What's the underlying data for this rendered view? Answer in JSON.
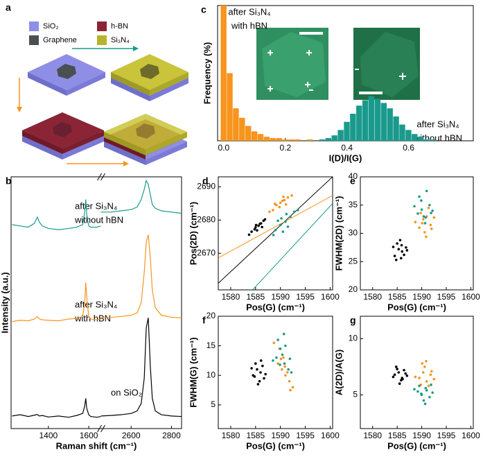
{
  "panel_a": {
    "label": "a",
    "legend": [
      {
        "label": "SiO₂",
        "color": "#8f8ee6"
      },
      {
        "label": "h-BN",
        "color": "#8b2535"
      },
      {
        "label": "Graphene",
        "color": "#4a4f52"
      },
      {
        "label": "Si₃N₄",
        "color": "#b8b32c"
      }
    ]
  },
  "chart_data": [
    {
      "type": "line",
      "label": "b",
      "xlabel": "Raman shift (cm⁻¹)",
      "ylabel": "Intensity (a.u.)",
      "xlim": [
        [
          1215,
          1660
        ],
        [
          2450,
          2850
        ]
      ],
      "ylim": [
        0,
        100
      ],
      "xticks": [
        1400,
        1600,
        2600,
        2800
      ],
      "x": [
        1220,
        1260,
        1300,
        1330,
        1345,
        1355,
        1370,
        1400,
        1450,
        1500,
        1540,
        1570,
        1580,
        1585,
        1590,
        1600,
        1610,
        1640,
        1660,
        2450,
        2500,
        2550,
        2600,
        2630,
        2650,
        2665,
        2675,
        2685,
        2695,
        2705,
        2720,
        2750,
        2800,
        2850
      ],
      "series": [
        {
          "color": "#000000",
          "values": [
            5,
            5.5,
            4.8,
            5.3,
            5.6,
            5,
            5.2,
            4.6,
            5,
            4.5,
            5.2,
            6,
            9,
            12,
            8,
            5.5,
            4.8,
            4.5,
            4.8,
            5,
            5.2,
            5.5,
            6,
            7,
            10,
            20,
            40,
            44,
            25,
            12,
            7,
            5.5,
            5,
            4.8
          ]
        },
        {
          "color": "#f7941d",
          "values": [
            42.5,
            43,
            42.8,
            43.5,
            44.5,
            43.6,
            43.2,
            43,
            42.8,
            43.5,
            43.8,
            44.5,
            50,
            58,
            52,
            44.5,
            43.5,
            43.2,
            43.6,
            44,
            44.2,
            44.5,
            45,
            46,
            50,
            62,
            74,
            77,
            68,
            55,
            48,
            45,
            44.2,
            44
          ]
        },
        {
          "color": "#1a9a8c",
          "values": [
            81,
            80.5,
            80,
            81.5,
            84,
            82,
            80.5,
            79.5,
            79,
            79.5,
            80,
            81,
            86,
            91,
            85,
            80.5,
            80,
            80,
            80.5,
            86,
            86,
            86.5,
            87,
            88,
            91,
            95,
            98.5,
            97,
            93,
            89,
            87.5,
            86.5,
            86,
            85.5
          ]
        }
      ],
      "annotations": [
        {
          "lines": [
            "after Si₃N₄",
            "without hBN"
          ],
          "color": "#1a9a8c"
        },
        {
          "lines": [
            "after Si₃N₄",
            "with hBN"
          ],
          "color": "#f7941d"
        },
        {
          "lines": [
            "on SiO₂"
          ],
          "color": "#000000"
        }
      ]
    },
    {
      "type": "histogram",
      "label": "c",
      "xlabel": "I(D)/I(G)",
      "ylabel": "Frequency (%)",
      "xlim": [
        -0.02,
        0.81
      ],
      "ylim": [
        0,
        100
      ],
      "xticks": [
        {
          "value": 0,
          "label": "0.0"
        },
        0.2,
        0.4,
        0.6
      ],
      "bins": [
        -0.01,
        0.01,
        0.03,
        0.05,
        0.07,
        0.09,
        0.11,
        0.13,
        0.15,
        0.17,
        0.19,
        0.21,
        0.23,
        0.25,
        0.27,
        0.29,
        0.31,
        0.33,
        0.35,
        0.37,
        0.39,
        0.41,
        0.43,
        0.45,
        0.47,
        0.49,
        0.51,
        0.53,
        0.55,
        0.57,
        0.59,
        0.61,
        0.63,
        0.65,
        0.67,
        0.69
      ],
      "series": [
        {
          "color": "#1a9a8c",
          "values": [
            0,
            0,
            0,
            0,
            0,
            0,
            0,
            0,
            0,
            0,
            0,
            0,
            0,
            0,
            0,
            0,
            1,
            2,
            4,
            8,
            14,
            20,
            26,
            30,
            33,
            31,
            28,
            24,
            18,
            12,
            8,
            5,
            3,
            1,
            1
          ]
        },
        {
          "color": "#f7941d",
          "values": [
            100,
            50,
            24,
            17,
            11,
            7,
            5,
            3,
            2,
            2,
            1,
            1,
            1,
            0,
            1,
            0,
            0,
            0,
            0,
            0,
            0,
            0,
            0,
            0,
            0,
            0,
            0,
            0,
            0,
            0,
            0,
            0,
            0,
            0,
            0
          ]
        }
      ],
      "annotations": [
        {
          "lines": [
            "after Si₃N₄",
            "with hBN"
          ],
          "color": "#f7941d"
        },
        {
          "lines": [
            "after Si₃N₄",
            "without hBN"
          ],
          "color": "#1a9a8c"
        }
      ]
    },
    {
      "type": "scatter",
      "label": "d",
      "xlabel": "Pos(G) (cm⁻¹)",
      "ylabel": "Pos(2D) (cm⁻¹)",
      "xlim": [
        1577.5,
        1600.5
      ],
      "ylim": [
        2659,
        2693
      ],
      "xticks": [
        1580,
        1585,
        1590,
        1595,
        1600
      ],
      "yticks": [
        2670,
        2680,
        2690
      ],
      "fit_lines": [
        {
          "color": "#000000",
          "x": [
            1577.5,
            1600.5
          ],
          "values": [
            2661,
            2693
          ]
        },
        {
          "color": "#f7941d",
          "x": [
            1577.5,
            1600.5
          ],
          "values": [
            2668.6,
            2687.4
          ]
        },
        {
          "color": "#1a9a8c",
          "x": [
            1584.4,
            1600.5
          ],
          "values": [
            2659,
            2685
          ]
        }
      ],
      "series": [
        {
          "color": "#000000",
          "x": [
            1584.2,
            1585,
            1585.6,
            1586.1,
            1585.3,
            1586.6,
            1584.8,
            1583.7,
            1586.9,
            1585.9,
            1585.1,
            1586.3
          ],
          "values": [
            2676.5,
            2677.8,
            2678.3,
            2679,
            2676.9,
            2679.8,
            2677.2,
            2675.6,
            2680.2,
            2678.9,
            2678.5,
            2677.9
          ]
        },
        {
          "color": "#f7941d",
          "x": [
            1588.5,
            1589.2,
            1590,
            1590.8,
            1591.5,
            1589.8,
            1590.4,
            1591.1,
            1592.3,
            1588.9,
            1590.6,
            1587.8
          ],
          "values": [
            2683,
            2684.5,
            2685.2,
            2686,
            2686.8,
            2683.9,
            2685.8,
            2684.7,
            2687.4,
            2684.9,
            2687,
            2682.5
          ]
        },
        {
          "color": "#1a9a8c",
          "x": [
            1589,
            1590,
            1591,
            1592,
            1590.5,
            1591.5,
            1592.8,
            1589.5,
            1591.2,
            1593.5,
            1588.6,
            1590.2
          ],
          "values": [
            2677,
            2678.5,
            2679.5,
            2681,
            2676.5,
            2678,
            2682.5,
            2679.8,
            2681.8,
            2683,
            2675.5,
            2680.5
          ]
        }
      ]
    },
    {
      "type": "scatter",
      "label": "e",
      "xlabel": "Pos(G) (cm⁻¹)",
      "ylabel": "FWHM(2D) (cm⁻¹)",
      "xlim": [
        1577.5,
        1600.5
      ],
      "ylim": [
        20,
        40
      ],
      "xticks": [
        1580,
        1585,
        1590,
        1595,
        1600
      ],
      "yticks": [
        20,
        25,
        30,
        35,
        40
      ],
      "series": [
        {
          "color": "#000000",
          "x": [
            1584.5,
            1585.3,
            1586,
            1586.8,
            1585,
            1585.8,
            1584.2,
            1586.4,
            1585.6,
            1587,
            1584.8,
            1585.9
          ],
          "values": [
            26,
            27.2,
            26.8,
            27.5,
            28.2,
            25.6,
            27.6,
            26.2,
            28.8,
            27,
            25.3,
            27.9
          ]
        },
        {
          "color": "#f7941d",
          "x": [
            1589.5,
            1590.3,
            1591,
            1591.8,
            1590.6,
            1589.8,
            1592.5,
            1590.9,
            1588.7,
            1591.4,
            1590.1,
            1592
          ],
          "values": [
            31,
            32.5,
            33,
            31.5,
            30.2,
            33.6,
            32.8,
            29.4,
            32,
            34.5,
            31.8,
            30.8
          ]
        },
        {
          "color": "#1a9a8c",
          "x": [
            1589.2,
            1590,
            1590.8,
            1591.6,
            1589.5,
            1590.4,
            1592.2,
            1591,
            1588.5,
            1590.7,
            1591.9,
            1589.9
          ],
          "values": [
            33.5,
            34.2,
            32.8,
            35,
            36.5,
            33,
            34,
            37.5,
            34.8,
            31.8,
            33.6,
            35.8
          ]
        }
      ]
    },
    {
      "type": "scatter",
      "label": "f",
      "xlabel": "Pos(G) (cm⁻¹)",
      "ylabel": "FWHM(G) (cm⁻¹)",
      "xlim": [
        1577.5,
        1600.5
      ],
      "ylim": [
        1,
        20
      ],
      "xticks": [
        1580,
        1585,
        1590,
        1595,
        1600
      ],
      "yticks": [
        5,
        10,
        15,
        20
      ],
      "series": [
        {
          "color": "#000000",
          "x": [
            1584.5,
            1585.3,
            1586,
            1586.7,
            1585,
            1585.8,
            1584.2,
            1586.4,
            1585.5,
            1587,
            1584.8,
            1586.1
          ],
          "values": [
            10,
            11,
            10.5,
            9.5,
            12,
            9,
            11.2,
            11.6,
            8.5,
            10.2,
            9.8,
            12.5
          ]
        },
        {
          "color": "#f7941d",
          "x": [
            1589.5,
            1590.3,
            1591,
            1591.8,
            1590.6,
            1589.8,
            1592.5,
            1590.9,
            1588.7,
            1591.4,
            1590.1,
            1592
          ],
          "values": [
            12,
            11,
            10,
            9,
            13,
            14.5,
            8,
            11.5,
            15.5,
            10.5,
            12.8,
            7.5
          ]
        },
        {
          "color": "#1a9a8c",
          "x": [
            1589.2,
            1590,
            1590.8,
            1591.6,
            1589.5,
            1590.4,
            1592.2,
            1591,
            1588.5,
            1590.7,
            1591.9,
            1589.9
          ],
          "values": [
            13,
            14.5,
            12,
            11,
            16,
            13.5,
            10.5,
            15,
            12.5,
            17,
            12.8,
            11.8
          ]
        }
      ]
    },
    {
      "type": "scatter",
      "label": "g",
      "xlabel": "Pos(G) (cm⁻¹)",
      "ylabel": "A(2D)/A(G)",
      "xlim": [
        1577.5,
        1600.5
      ],
      "ylim": [
        2,
        12
      ],
      "xticks": [
        1580,
        1585,
        1590,
        1595,
        1600
      ],
      "yticks": [
        5,
        10
      ],
      "series": [
        {
          "color": "#000000",
          "x": [
            1584.5,
            1585.3,
            1586,
            1586.7,
            1585,
            1585.8,
            1584.2,
            1586.4,
            1585.5,
            1587,
            1584.8,
            1586.1
          ],
          "values": [
            6.8,
            7,
            6.5,
            6.9,
            7.3,
            6.3,
            6.6,
            7.2,
            6,
            6.7,
            7.5,
            6.4
          ]
        },
        {
          "color": "#f7941d",
          "x": [
            1589.5,
            1590.3,
            1591,
            1591.8,
            1590.6,
            1589.8,
            1592.5,
            1590.9,
            1588.7,
            1591.4,
            1590.1,
            1592
          ],
          "values": [
            6.5,
            7,
            6.2,
            6.8,
            7.5,
            5.9,
            6.4,
            8,
            6.6,
            5.8,
            7.8,
            7.1
          ]
        },
        {
          "color": "#1a9a8c",
          "x": [
            1589.2,
            1590,
            1590.8,
            1591.6,
            1589.5,
            1590.4,
            1592.2,
            1591,
            1588.5,
            1590.7,
            1591.9,
            1589.9
          ],
          "values": [
            5.3,
            5,
            5.6,
            4.8,
            5.8,
            4.5,
            5.2,
            5.4,
            5.5,
            4.2,
            5.9,
            5.1
          ]
        }
      ]
    }
  ]
}
